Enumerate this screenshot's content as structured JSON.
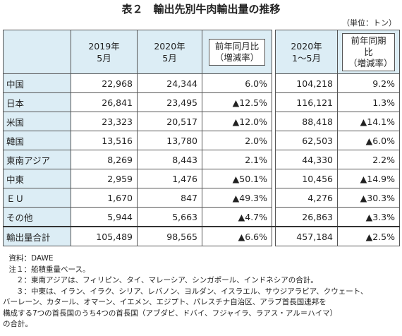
{
  "header": {
    "title": "表２　輸出先別牛肉輸出量の推移",
    "unit": "（単位：トン）"
  },
  "table": {
    "columns": [
      [
        "2019年",
        "5月"
      ],
      [
        "2020年",
        "5月"
      ],
      [
        "前年同月比",
        "（増減率）"
      ],
      [
        "2020年",
        "1～5月"
      ],
      [
        "前年同期比",
        "（増減率）"
      ]
    ],
    "rows": [
      [
        "中国",
        "22,968",
        "24,344",
        "6.0%",
        "104,218",
        "9.2%"
      ],
      [
        "日本",
        "26,841",
        "23,495",
        "▲12.5%",
        "116,121",
        "1.3%"
      ],
      [
        "米国",
        "23,323",
        "20,517",
        "▲12.0%",
        "88,418",
        "▲14.1%"
      ],
      [
        "韓国",
        "13,516",
        "13,780",
        "2.0%",
        "62,503",
        "▲6.0%"
      ],
      [
        "東南アジア",
        "8,269",
        "8,443",
        "2.1%",
        "44,330",
        "2.2%"
      ],
      [
        "中東",
        "2,959",
        "1,476",
        "▲50.1%",
        "10,456",
        "▲14.9%"
      ],
      [
        "ＥＵ",
        "1,670",
        "847",
        "▲49.3%",
        "4,276",
        "▲30.3%"
      ],
      [
        "その他",
        "5,944",
        "5,663",
        "▲4.7%",
        "26,863",
        "▲3.3%"
      ],
      [
        "輸出量合計",
        "105,489",
        "98,565",
        "▲6.6%",
        "457,184",
        "▲2.5%"
      ]
    ]
  },
  "notes": [
    {
      "label": "資料：",
      "lines": [
        "DAWE"
      ]
    },
    {
      "label": "注１：",
      "lines": [
        "船積重量ベース。"
      ]
    },
    {
      "label": "２：",
      "lines": [
        "東南アジアは、フィリピン、タイ、マレーシア、シンガポール、インドネシアの合計。"
      ]
    },
    {
      "label": "３：",
      "lines": [
        "中東は、イラン、イラク、シリア、レバノン、ヨルダン、イスラエル、サウジアラビア、クウェート、",
        "バーレーン、カタール、オマーン、イエメン、エジプト、パレスチナ自治区、アラブ首長国連邦を",
        "構成する7つの首長国のうち4つの首長国（アブダビ、ドバイ、フジャイラ、ラアス・アル＝ハイマ）",
        "の合計。"
      ]
    }
  ]
}
